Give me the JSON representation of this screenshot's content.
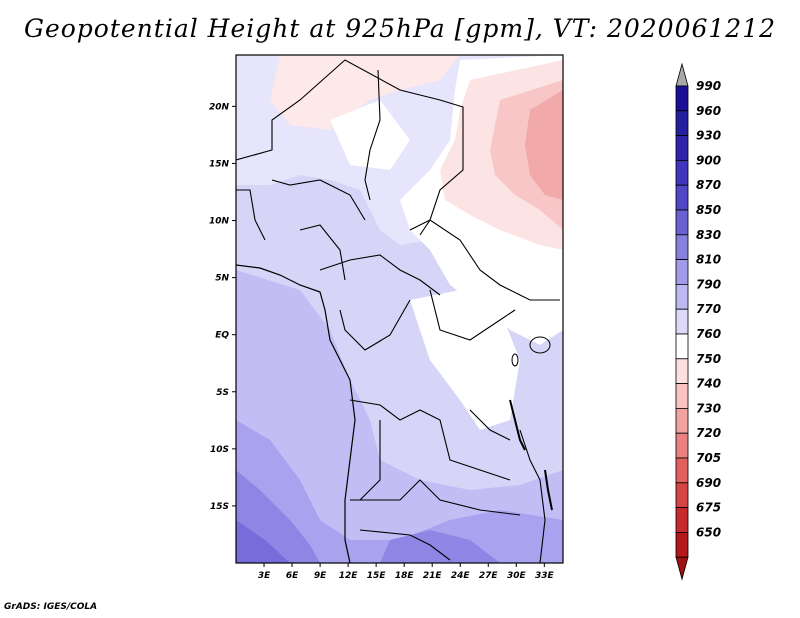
{
  "title": "Geopotential Height at 925hPa [gpm], VT: 2020061212",
  "credit": "GrADS: IGES/COLA",
  "map": {
    "lat_ticks": [
      "20N",
      "15N",
      "10N",
      "5N",
      "EQ",
      "5S",
      "10S",
      "15S"
    ],
    "lon_ticks": [
      "3E",
      "6E",
      "9E",
      "12E",
      "15E",
      "18E",
      "21E",
      "24E",
      "27E",
      "30E",
      "33E"
    ],
    "extent": {
      "lon_min": 0,
      "lon_max": 35,
      "lat_min": -20,
      "lat_max": 24.5
    }
  },
  "colorbar": {
    "levels": [
      "990",
      "960",
      "930",
      "900",
      "870",
      "850",
      "830",
      "810",
      "790",
      "770",
      "760",
      "750",
      "740",
      "730",
      "720",
      "705",
      "690",
      "675",
      "650"
    ],
    "colors": [
      "#1a1096",
      "#24209e",
      "#3124ab",
      "#3f36bd",
      "#5048c6",
      "#6a62d2",
      "#8680de",
      "#a29ce8",
      "#bebaf1",
      "#dcdaf8",
      "#ffffff",
      "#fde1e1",
      "#f9c3c3",
      "#f3a2a2",
      "#ec8181",
      "#e26060",
      "#d64444",
      "#c62a2a",
      "#b51818"
    ],
    "top_arrow_color": "#a8a8a8",
    "bottom_arrow_color": "#a01010"
  }
}
